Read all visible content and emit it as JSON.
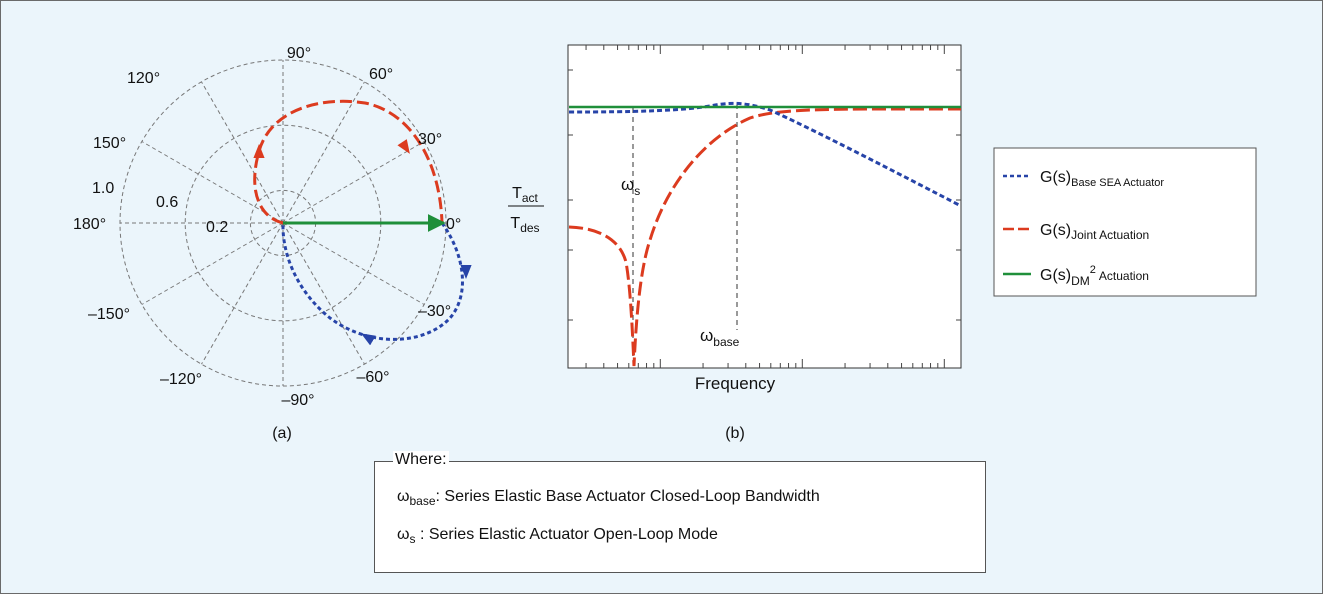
{
  "chart_data": [
    {
      "type": "polar",
      "panel_label": "(a)",
      "angle_labels": [
        "90°",
        "60°",
        "30°",
        "0°",
        "–30°",
        "–60°",
        "–90°",
        "–120°",
        "–150°",
        "180°",
        "150°",
        "120°"
      ],
      "radius_labels": [
        "0.2",
        "0.6",
        "1.0"
      ],
      "rlim": [
        0,
        1.0
      ],
      "series": [
        {
          "color": "#dc3b1f",
          "style": "long-dash",
          "points": [
            [
              0.0,
              180
            ],
            [
              0.25,
              170
            ],
            [
              0.45,
              150
            ],
            [
              0.62,
              120
            ],
            [
              0.78,
              90
            ],
            [
              0.92,
              60
            ],
            [
              1.0,
              30
            ],
            [
              1.0,
              0
            ]
          ]
        },
        {
          "color": "#2744a8",
          "style": "dotted",
          "points": [
            [
              1.0,
              0
            ],
            [
              1.0,
              -30
            ],
            [
              0.92,
              -50
            ],
            [
              0.75,
              -65
            ],
            [
              0.5,
              -80
            ],
            [
              0.25,
              -95
            ],
            [
              0.0,
              -180
            ]
          ]
        },
        {
          "color": "#1f8f3a",
          "style": "solid",
          "points": [
            [
              0.0,
              0
            ],
            [
              1.0,
              0
            ]
          ]
        }
      ]
    },
    {
      "type": "line",
      "panel_label": "(b)",
      "xlabel": "Frequency",
      "ylabel_top": "T",
      "ylabel_top_sub": "act",
      "ylabel_bottom": "T",
      "ylabel_bottom_sub": "des",
      "xscale": "log",
      "annotations": [
        {
          "text": "ω",
          "sub": "s"
        },
        {
          "text": "ω",
          "sub": "base"
        }
      ],
      "series": [
        {
          "name": "G(s)",
          "name_sub": "Base SEA Actuator",
          "color": "#2744a8",
          "style": "dotted"
        },
        {
          "name": "G(s)",
          "name_sub": "Joint Actuation",
          "color": "#dc3b1f",
          "style": "long-dash"
        },
        {
          "name": "G(s)",
          "name_sub": "Actuation",
          "name_sub_prefix": "DM",
          "name_sup": "2",
          "color": "#1f8f3a",
          "style": "solid"
        }
      ]
    }
  ],
  "where_box": {
    "title": "Where:",
    "rows": [
      {
        "symbol": "ω",
        "sub": "base",
        "text": ": Series Elastic Base Actuator Closed-Loop Bandwidth"
      },
      {
        "symbol": "ω",
        "sub": "s",
        "text": " : Series Elastic Actuator Open-Loop Mode"
      }
    ]
  }
}
